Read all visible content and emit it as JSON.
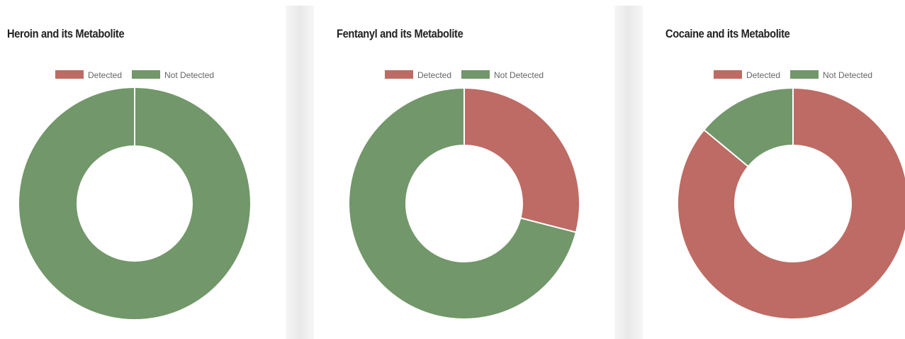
{
  "legend": {
    "detected": "Detected",
    "not_detected": "Not Detected"
  },
  "colors": {
    "detected": "#bd6b64",
    "not_detected": "#72976a",
    "slice_border": "#ffffff"
  },
  "chart_data": [
    {
      "type": "doughnut",
      "title": "Heroin and its Metabolite",
      "categories": [
        "Detected",
        "Not Detected"
      ],
      "values": [
        0,
        100
      ],
      "legend_position": "top"
    },
    {
      "type": "doughnut",
      "title": "Fentanyl and its Metabolite",
      "categories": [
        "Detected",
        "Not Detected"
      ],
      "values": [
        29,
        71
      ],
      "legend_position": "top"
    },
    {
      "type": "doughnut",
      "title": "Cocaine and its Metabolite",
      "categories": [
        "Detected",
        "Not Detected"
      ],
      "values": [
        86,
        14
      ],
      "legend_position": "top"
    }
  ]
}
